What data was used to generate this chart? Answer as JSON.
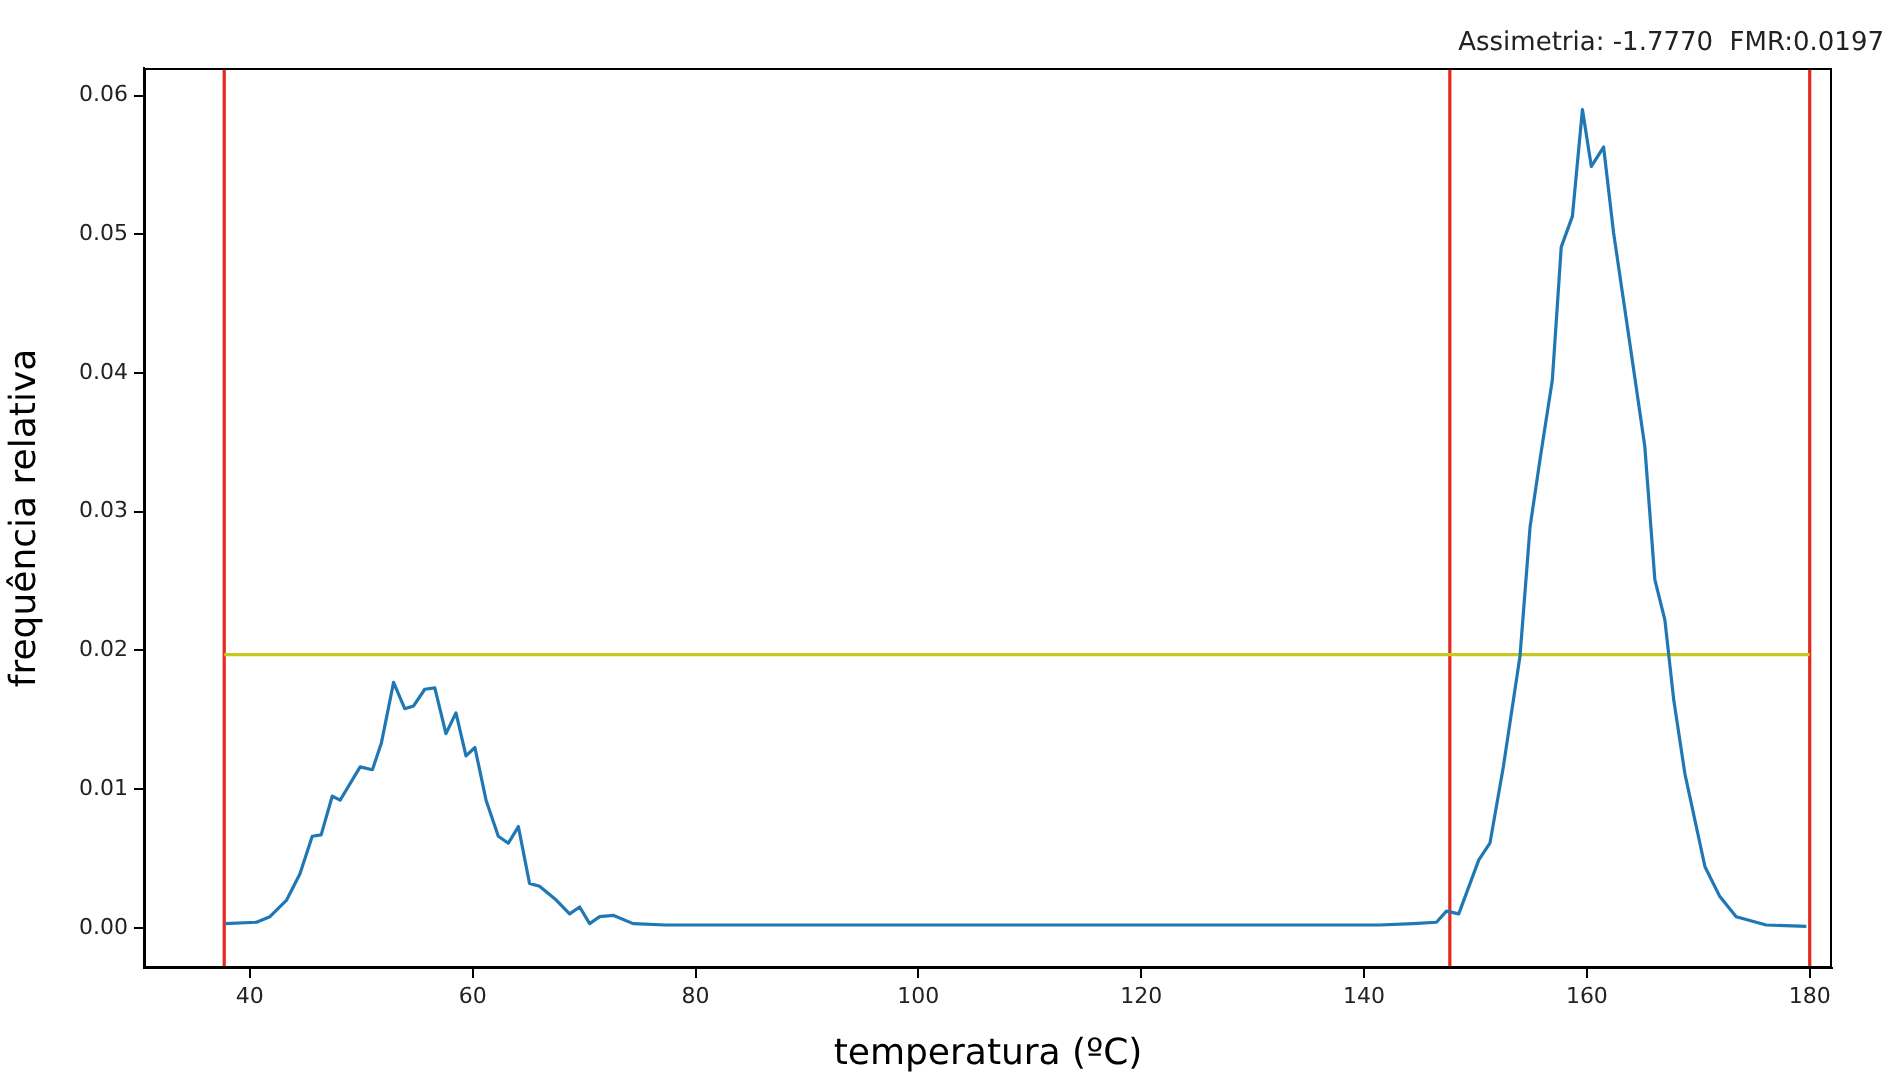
{
  "chart_data": {
    "type": "line",
    "xlabel": "temperatura (ºC)",
    "ylabel": "frequência relativa",
    "annotations": [
      "Assimetria: -1.7770  FMR:0.0197"
    ],
    "xlim": [
      30.5,
      182
    ],
    "xticks": [
      40,
      60,
      80,
      100,
      120,
      140,
      160,
      180
    ],
    "ylim": [
      -0.0029,
      0.062
    ],
    "yticks": [
      {
        "value": 0,
        "label": "0.00"
      },
      {
        "value": 0.01,
        "label": "0.01"
      },
      {
        "value": 0.02,
        "label": "0.02"
      },
      {
        "value": 0.03,
        "label": "0.03"
      },
      {
        "value": 0.04,
        "label": "0.04"
      },
      {
        "value": 0.05,
        "label": "0.05"
      },
      {
        "value": 0.06,
        "label": "0.06"
      }
    ],
    "grid": false,
    "legend": false,
    "marker": "none",
    "line_style": "solid",
    "series": [
      {
        "color": "#1f77b4",
        "x": [
          37.8,
          40.6,
          41.8,
          43.3,
          44.5,
          45.6,
          46.4,
          47.4,
          48.1,
          49.9,
          51.0,
          51.8,
          52.9,
          53.9,
          54.7,
          55.7,
          56.6,
          57.6,
          58.5,
          59.4,
          60.2,
          61.2,
          62.3,
          63.2,
          64.1,
          65.1,
          66.0,
          67.5,
          68.7,
          69.6,
          70.5,
          71.4,
          72.6,
          74.4,
          77.3,
          80.4,
          100,
          120,
          141.4,
          144.4,
          146.5,
          147.4,
          148.5,
          150.3,
          151.3,
          152.5,
          154.0,
          154.9,
          155.8,
          156.9,
          157.7,
          158.7,
          159.6,
          160.4,
          161.5,
          162.4,
          163.9,
          165.2,
          166.1,
          167.0,
          167.8,
          168.8,
          170.6,
          171.9,
          173.4,
          176.1,
          179.7
        ],
        "values": [
          0.0003,
          0.0004,
          0.0008,
          0.002,
          0.0039,
          0.0066,
          0.0067,
          0.0095,
          0.0092,
          0.0116,
          0.0114,
          0.0133,
          0.0177,
          0.0158,
          0.016,
          0.0172,
          0.0173,
          0.014,
          0.0155,
          0.0124,
          0.013,
          0.0092,
          0.0066,
          0.0061,
          0.0073,
          0.0032,
          0.003,
          0.002,
          0.001,
          0.0015,
          0.0003,
          0.0008,
          0.0009,
          0.0003,
          0.0002,
          0.0002,
          0.0002,
          0.0002,
          0.0002,
          0.0003,
          0.0004,
          0.0012,
          0.001,
          0.0049,
          0.0061,
          0.0116,
          0.0196,
          0.0289,
          0.0338,
          0.0395,
          0.0491,
          0.0513,
          0.059,
          0.0549,
          0.0563,
          0.0501,
          0.0419,
          0.0347,
          0.0251,
          0.0222,
          0.0164,
          0.0111,
          0.0044,
          0.0023,
          0.0008,
          0.0002,
          0.0001
        ]
      },
      {
        "color": "#c8c81e",
        "x": [
          37.7,
          180
        ],
        "values": [
          0.0197,
          0.0197
        ]
      }
    ],
    "ref_lines": [
      {
        "axis": "x",
        "value": 37.7,
        "color": "#e8271f"
      },
      {
        "axis": "x",
        "value": 147.7,
        "color": "#e8271f"
      },
      {
        "axis": "x",
        "value": 180,
        "color": "#e8271f"
      }
    ]
  }
}
